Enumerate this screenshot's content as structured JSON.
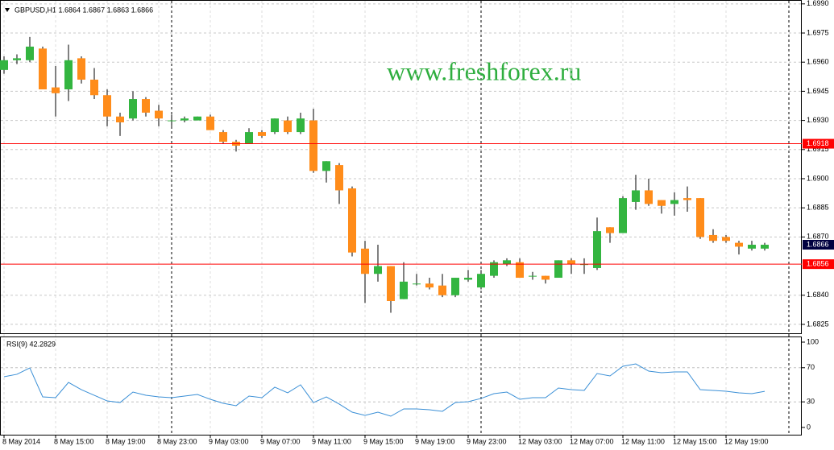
{
  "chart_data": [
    {
      "type": "candlestick",
      "title": "GBPUSD,H1  1.6864 1.6867 1.6863 1.6866",
      "watermark": "www.freshforex.ru",
      "categories": [
        "8 May 2014",
        null,
        null,
        null,
        "8 May 15:00",
        null,
        null,
        null,
        "8 May 19:00",
        null,
        null,
        null,
        "8 May 23:00",
        null,
        null,
        null,
        "9 May 03:00",
        null,
        null,
        null,
        "9 May 07:00",
        null,
        null,
        null,
        "9 May 11:00",
        null,
        null,
        null,
        "9 May 15:00",
        null,
        null,
        null,
        "9 May 19:00",
        null,
        null,
        null,
        "9 May 23:00",
        null,
        null,
        null,
        "12 May 03:00",
        null,
        null,
        null,
        "12 May 07:00",
        null,
        null,
        null,
        "12 May 11:00",
        null,
        null,
        null,
        "12 May 15:00",
        null,
        null,
        null,
        "12 May 19:00",
        null,
        null,
        null
      ],
      "open": [
        1.6956,
        1.6961,
        1.6961,
        1.6967,
        1.6947,
        1.6946,
        1.6962,
        1.6951,
        1.6943,
        1.6932,
        1.6931,
        1.6941,
        1.6935,
        1.693,
        1.693,
        1.693,
        1.6932,
        1.6924,
        1.6919,
        1.6918,
        1.6924,
        1.6924,
        1.693,
        1.6924,
        1.693,
        1.6904,
        1.6907,
        1.6895,
        1.6864,
        1.6851,
        1.6855,
        1.6838,
        1.6846,
        1.6846,
        1.6845,
        1.684,
        1.6848,
        1.6844,
        1.685,
        1.6856,
        1.6857,
        1.685,
        1.685,
        1.6849,
        1.6858,
        1.6856,
        1.6854,
        1.6875,
        1.6872,
        1.6888,
        1.6894,
        1.6889,
        1.6887,
        1.689,
        1.689,
        1.6871,
        1.687,
        1.6867,
        1.6864,
        1.6864
      ],
      "high": [
        1.6963,
        1.6964,
        1.6973,
        1.6968,
        1.6958,
        1.6969,
        1.6963,
        1.6957,
        1.6946,
        1.6934,
        1.6945,
        1.6942,
        1.6938,
        1.6933,
        1.6932,
        1.6932,
        1.6933,
        1.6925,
        1.692,
        1.6926,
        1.6925,
        1.6931,
        1.6932,
        1.6934,
        1.6936,
        1.6909,
        1.6908,
        1.6896,
        1.6868,
        1.6866,
        1.6855,
        1.6857,
        1.6851,
        1.6849,
        1.6851,
        1.6849,
        1.6853,
        1.6853,
        1.6858,
        1.6859,
        1.6859,
        1.6852,
        1.685,
        1.6858,
        1.6859,
        1.6859,
        1.688,
        1.6875,
        1.6891,
        1.6902,
        1.69,
        1.6889,
        1.6893,
        1.6896,
        1.689,
        1.6874,
        1.6871,
        1.6868,
        1.6868,
        1.6867
      ],
      "low": [
        1.6954,
        1.6959,
        1.696,
        1.6946,
        1.6932,
        1.694,
        1.6949,
        1.6941,
        1.6927,
        1.6922,
        1.693,
        1.6932,
        1.6927,
        1.6927,
        1.6929,
        1.693,
        1.6925,
        1.6918,
        1.6914,
        1.6918,
        1.6921,
        1.6923,
        1.6923,
        1.6923,
        1.6903,
        1.6898,
        1.6887,
        1.686,
        1.6836,
        1.6847,
        1.6831,
        1.6838,
        1.6845,
        1.6843,
        1.6839,
        1.6839,
        1.6847,
        1.6843,
        1.6849,
        1.6855,
        1.6849,
        1.6848,
        1.6846,
        1.6849,
        1.6851,
        1.6851,
        1.6853,
        1.6867,
        1.6872,
        1.6884,
        1.6886,
        1.6882,
        1.6881,
        1.6883,
        1.6869,
        1.6867,
        1.6867,
        1.6861,
        1.6863,
        1.6863
      ],
      "close": [
        1.6961,
        1.6962,
        1.6968,
        1.6946,
        1.6944,
        1.6961,
        1.6951,
        1.6943,
        1.6932,
        1.6929,
        1.6941,
        1.6934,
        1.6931,
        1.693,
        1.6931,
        1.6932,
        1.6925,
        1.6919,
        1.6917,
        1.6924,
        1.6922,
        1.6931,
        1.6924,
        1.6931,
        1.6904,
        1.6909,
        1.6894,
        1.6862,
        1.6851,
        1.6855,
        1.6837,
        1.6847,
        1.6846,
        1.6844,
        1.684,
        1.6849,
        1.6849,
        1.6851,
        1.6857,
        1.6858,
        1.6849,
        1.685,
        1.6848,
        1.6858,
        1.6856,
        1.6856,
        1.6873,
        1.6872,
        1.689,
        1.6894,
        1.6887,
        1.6886,
        1.6889,
        1.6889,
        1.687,
        1.6868,
        1.6868,
        1.6865,
        1.6866,
        1.6866
      ],
      "up_color": "#33b540",
      "down_color": "#ff8c1a",
      "ylim": [
        1.682,
        1.6992
      ],
      "yticks": [
        {
          "value": 1.699,
          "label": "1.6990"
        },
        1.6975,
        {
          "value": 1.696,
          "label": "1.6960"
        },
        1.6945,
        {
          "value": 1.693,
          "label": "1.6930"
        },
        1.6915,
        {
          "value": 1.69,
          "label": "1.6900"
        },
        1.6885,
        {
          "value": 1.687,
          "label": "1.6870"
        },
        {
          "value": 1.684,
          "label": "1.6840"
        },
        1.6825
      ],
      "levels": [
        1.6918,
        1.6856
      ],
      "level_color": "#ff0000",
      "grid": true
    },
    {
      "type": "line",
      "title": "RSI(9) 42.2829",
      "color": "#3a8fd6",
      "values": [
        59.4,
        62.3,
        69.8,
        35.8,
        34.9,
        52.8,
        44.3,
        37.7,
        31.1,
        29.2,
        41.5,
        37.7,
        35.8,
        34.9,
        36.8,
        38.7,
        33.0,
        28.3,
        25.5,
        36.8,
        34.9,
        47.2,
        40.6,
        50.0,
        29.2,
        35.8,
        27.4,
        17.9,
        14.2,
        17.9,
        13.2,
        21.7,
        21.7,
        20.8,
        18.9,
        29.2,
        30.2,
        34.0,
        39.6,
        41.5,
        33.0,
        34.9,
        34.9,
        46.2,
        44.3,
        43.4,
        63.2,
        60.4,
        71.7,
        74.5,
        66.0,
        64.2,
        65.1,
        65.1,
        44.3,
        43.4,
        42.5,
        40.6,
        39.6,
        42.2829
      ],
      "ylim": [
        -8.5,
        106.6
      ],
      "yticks": [
        0,
        30,
        70,
        100
      ]
    }
  ]
}
